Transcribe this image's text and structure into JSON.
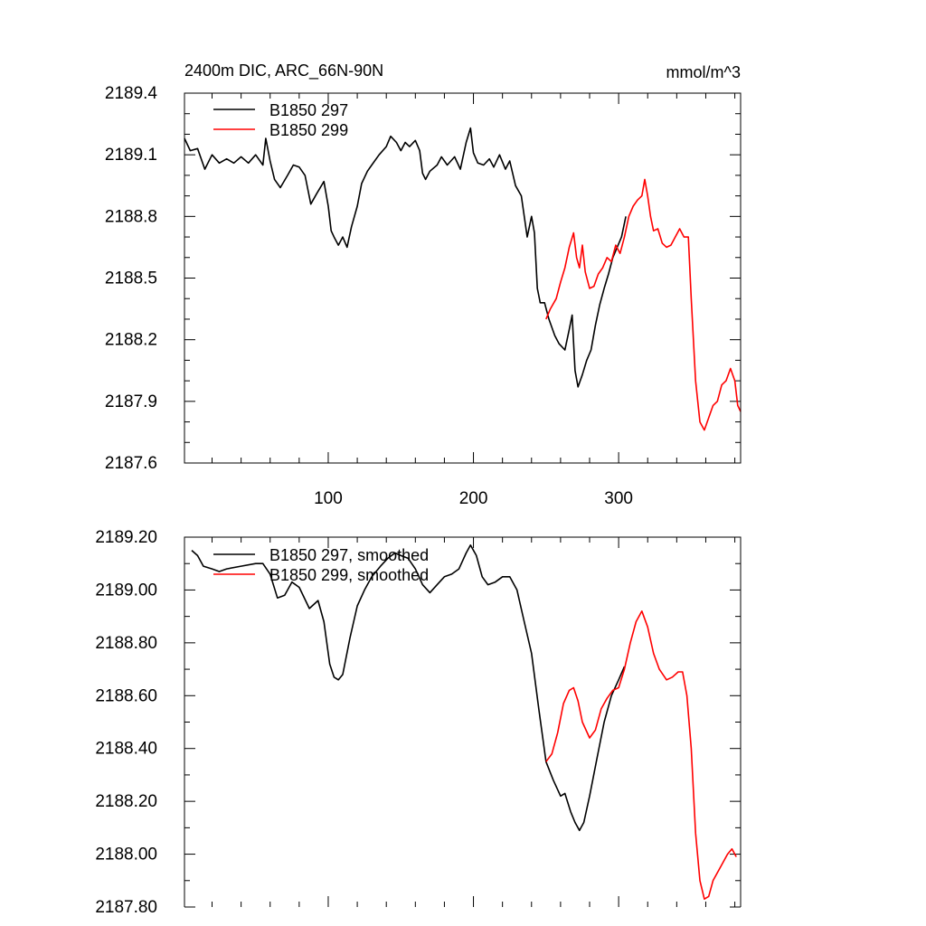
{
  "figure": {
    "title_left": "2400m DIC, ARC_66N-90N",
    "title_right": "mmol/m^3"
  },
  "chart_data": [
    {
      "type": "line",
      "title": "2400m DIC, ARC_66N-90N",
      "units": "mmol/m^3",
      "xlim": [
        1,
        384
      ],
      "ylim": [
        2187.6,
        2189.4
      ],
      "x_ticks": [
        100,
        200,
        300
      ],
      "x_tick_labels": [
        "100",
        "200",
        "300"
      ],
      "y_ticks": [
        2187.6,
        2187.9,
        2188.2,
        2188.5,
        2188.8,
        2189.1,
        2189.4
      ],
      "y_tick_labels": [
        "2187.6",
        "2187.9",
        "2188.2",
        "2188.5",
        "2188.8",
        "2189.1",
        "2189.4"
      ],
      "legend_position": "top-left",
      "series": [
        {
          "name": "B1850 297",
          "color": "#000000",
          "points": [
            [
              1,
              2189.18
            ],
            [
              5,
              2189.12
            ],
            [
              10,
              2189.13
            ],
            [
              15,
              2189.03
            ],
            [
              20,
              2189.1
            ],
            [
              25,
              2189.06
            ],
            [
              30,
              2189.08
            ],
            [
              35,
              2189.06
            ],
            [
              40,
              2189.09
            ],
            [
              45,
              2189.06
            ],
            [
              50,
              2189.1
            ],
            [
              55,
              2189.05
            ],
            [
              57,
              2189.18
            ],
            [
              60,
              2189.07
            ],
            [
              63,
              2188.98
            ],
            [
              67,
              2188.94
            ],
            [
              72,
              2189.0
            ],
            [
              76,
              2189.05
            ],
            [
              80,
              2189.04
            ],
            [
              84,
              2189.0
            ],
            [
              88,
              2188.86
            ],
            [
              92,
              2188.91
            ],
            [
              97,
              2188.97
            ],
            [
              100,
              2188.85
            ],
            [
              102,
              2188.73
            ],
            [
              104,
              2188.7
            ],
            [
              107,
              2188.66
            ],
            [
              110,
              2188.7
            ],
            [
              113,
              2188.65
            ],
            [
              116,
              2188.75
            ],
            [
              120,
              2188.85
            ],
            [
              123,
              2188.96
            ],
            [
              127,
              2189.02
            ],
            [
              130,
              2189.05
            ],
            [
              135,
              2189.1
            ],
            [
              140,
              2189.14
            ],
            [
              143,
              2189.19
            ],
            [
              147,
              2189.16
            ],
            [
              150,
              2189.12
            ],
            [
              153,
              2189.16
            ],
            [
              156,
              2189.14
            ],
            [
              160,
              2189.17
            ],
            [
              163,
              2189.12
            ],
            [
              165,
              2189.01
            ],
            [
              167,
              2188.98
            ],
            [
              170,
              2189.02
            ],
            [
              175,
              2189.05
            ],
            [
              178,
              2189.09
            ],
            [
              182,
              2189.05
            ],
            [
              187,
              2189.09
            ],
            [
              191,
              2189.03
            ],
            [
              195,
              2189.16
            ],
            [
              198,
              2189.23
            ],
            [
              200,
              2189.11
            ],
            [
              203,
              2189.06
            ],
            [
              207,
              2189.05
            ],
            [
              211,
              2189.08
            ],
            [
              214,
              2189.04
            ],
            [
              218,
              2189.1
            ],
            [
              222,
              2189.03
            ],
            [
              225,
              2189.07
            ],
            [
              229,
              2188.95
            ],
            [
              233,
              2188.9
            ],
            [
              237,
              2188.7
            ],
            [
              240,
              2188.8
            ],
            [
              242,
              2188.72
            ],
            [
              244,
              2188.45
            ],
            [
              246,
              2188.38
            ],
            [
              249,
              2188.38
            ],
            [
              252,
              2188.3
            ],
            [
              256,
              2188.22
            ],
            [
              259,
              2188.18
            ],
            [
              263,
              2188.15
            ],
            [
              266,
              2188.25
            ],
            [
              268,
              2188.32
            ],
            [
              270,
              2188.05
            ],
            [
              272,
              2187.97
            ],
            [
              275,
              2188.03
            ],
            [
              278,
              2188.1
            ],
            [
              281,
              2188.15
            ],
            [
              284,
              2188.27
            ],
            [
              287,
              2188.37
            ],
            [
              290,
              2188.45
            ],
            [
              293,
              2188.52
            ],
            [
              296,
              2188.6
            ],
            [
              299,
              2188.65
            ],
            [
              302,
              2188.7
            ],
            [
              305,
              2188.8
            ]
          ]
        },
        {
          "name": "B1850 299",
          "color": "#ff0000",
          "points": [
            [
              250,
              2188.3
            ],
            [
              253,
              2188.35
            ],
            [
              257,
              2188.4
            ],
            [
              260,
              2188.48
            ],
            [
              263,
              2188.55
            ],
            [
              266,
              2188.65
            ],
            [
              269,
              2188.72
            ],
            [
              271,
              2188.6
            ],
            [
              273,
              2188.55
            ],
            [
              275,
              2188.66
            ],
            [
              277,
              2188.53
            ],
            [
              280,
              2188.45
            ],
            [
              283,
              2188.46
            ],
            [
              286,
              2188.52
            ],
            [
              289,
              2188.55
            ],
            [
              292,
              2188.6
            ],
            [
              295,
              2188.58
            ],
            [
              298,
              2188.66
            ],
            [
              301,
              2188.62
            ],
            [
              304,
              2188.7
            ],
            [
              307,
              2188.8
            ],
            [
              310,
              2188.85
            ],
            [
              313,
              2188.88
            ],
            [
              316,
              2188.9
            ],
            [
              318,
              2188.98
            ],
            [
              320,
              2188.9
            ],
            [
              322,
              2188.8
            ],
            [
              324,
              2188.73
            ],
            [
              327,
              2188.74
            ],
            [
              330,
              2188.67
            ],
            [
              333,
              2188.65
            ],
            [
              336,
              2188.66
            ],
            [
              339,
              2188.7
            ],
            [
              342,
              2188.74
            ],
            [
              345,
              2188.7
            ],
            [
              348,
              2188.7
            ],
            [
              350,
              2188.4
            ],
            [
              353,
              2188.0
            ],
            [
              356,
              2187.8
            ],
            [
              359,
              2187.76
            ],
            [
              362,
              2187.82
            ],
            [
              365,
              2187.88
            ],
            [
              368,
              2187.9
            ],
            [
              371,
              2187.98
            ],
            [
              374,
              2188.0
            ],
            [
              377,
              2188.06
            ],
            [
              380,
              2188.0
            ],
            [
              382,
              2187.88
            ],
            [
              384,
              2187.85
            ]
          ]
        }
      ]
    },
    {
      "type": "line",
      "xlim": [
        1,
        384
      ],
      "ylim": [
        2187.8,
        2189.2
      ],
      "x_ticks": [
        100,
        200,
        300
      ],
      "y_ticks": [
        2187.8,
        2188.0,
        2188.2,
        2188.4,
        2188.6,
        2188.8,
        2189.0,
        2189.2
      ],
      "y_tick_labels": [
        "2187.80",
        "2188.00",
        "2188.20",
        "2188.40",
        "2188.60",
        "2188.80",
        "2189.00",
        "2189.20"
      ],
      "legend_position": "top-left",
      "series": [
        {
          "name": "B1850 297, smoothed",
          "color": "#000000",
          "points": [
            [
              6,
              2189.15
            ],
            [
              10,
              2189.13
            ],
            [
              14,
              2189.09
            ],
            [
              20,
              2189.08
            ],
            [
              25,
              2189.07
            ],
            [
              30,
              2189.08
            ],
            [
              40,
              2189.09
            ],
            [
              50,
              2189.1
            ],
            [
              55,
              2189.1
            ],
            [
              60,
              2189.06
            ],
            [
              65,
              2188.97
            ],
            [
              70,
              2188.98
            ],
            [
              75,
              2189.03
            ],
            [
              80,
              2189.01
            ],
            [
              87,
              2188.93
            ],
            [
              93,
              2188.96
            ],
            [
              97,
              2188.88
            ],
            [
              101,
              2188.72
            ],
            [
              104,
              2188.67
            ],
            [
              107,
              2188.66
            ],
            [
              110,
              2188.68
            ],
            [
              115,
              2188.82
            ],
            [
              120,
              2188.94
            ],
            [
              125,
              2189.0
            ],
            [
              130,
              2189.05
            ],
            [
              136,
              2189.09
            ],
            [
              141,
              2189.12
            ],
            [
              146,
              2189.14
            ],
            [
              150,
              2189.13
            ],
            [
              155,
              2189.12
            ],
            [
              160,
              2189.08
            ],
            [
              165,
              2189.02
            ],
            [
              170,
              2188.99
            ],
            [
              175,
              2189.02
            ],
            [
              180,
              2189.05
            ],
            [
              185,
              2189.06
            ],
            [
              190,
              2189.08
            ],
            [
              195,
              2189.14
            ],
            [
              198,
              2189.17
            ],
            [
              202,
              2189.13
            ],
            [
              206,
              2189.05
            ],
            [
              210,
              2189.02
            ],
            [
              215,
              2189.03
            ],
            [
              220,
              2189.05
            ],
            [
              225,
              2189.05
            ],
            [
              230,
              2189.0
            ],
            [
              235,
              2188.88
            ],
            [
              240,
              2188.76
            ],
            [
              245,
              2188.55
            ],
            [
              250,
              2188.35
            ],
            [
              255,
              2188.28
            ],
            [
              260,
              2188.22
            ],
            [
              263,
              2188.23
            ],
            [
              267,
              2188.16
            ],
            [
              270,
              2188.12
            ],
            [
              273,
              2188.09
            ],
            [
              276,
              2188.12
            ],
            [
              280,
              2188.22
            ],
            [
              285,
              2188.36
            ],
            [
              290,
              2188.5
            ],
            [
              295,
              2188.6
            ],
            [
              300,
              2188.66
            ],
            [
              304,
              2188.71
            ]
          ]
        },
        {
          "name": "B1850 299, smoothed",
          "color": "#ff0000",
          "points": [
            [
              250,
              2188.35
            ],
            [
              254,
              2188.38
            ],
            [
              258,
              2188.46
            ],
            [
              262,
              2188.57
            ],
            [
              266,
              2188.62
            ],
            [
              269,
              2188.63
            ],
            [
              272,
              2188.58
            ],
            [
              275,
              2188.5
            ],
            [
              280,
              2188.44
            ],
            [
              284,
              2188.47
            ],
            [
              288,
              2188.55
            ],
            [
              292,
              2188.59
            ],
            [
              296,
              2188.62
            ],
            [
              300,
              2188.63
            ],
            [
              304,
              2188.7
            ],
            [
              308,
              2188.8
            ],
            [
              312,
              2188.88
            ],
            [
              316,
              2188.92
            ],
            [
              320,
              2188.86
            ],
            [
              324,
              2188.76
            ],
            [
              328,
              2188.7
            ],
            [
              333,
              2188.66
            ],
            [
              337,
              2188.67
            ],
            [
              341,
              2188.69
            ],
            [
              344,
              2188.69
            ],
            [
              347,
              2188.6
            ],
            [
              350,
              2188.4
            ],
            [
              353,
              2188.08
            ],
            [
              356,
              2187.9
            ],
            [
              359,
              2187.83
            ],
            [
              362,
              2187.84
            ],
            [
              365,
              2187.9
            ],
            [
              370,
              2187.95
            ],
            [
              375,
              2188.0
            ],
            [
              378,
              2188.02
            ],
            [
              381,
              2187.99
            ]
          ]
        }
      ]
    }
  ]
}
